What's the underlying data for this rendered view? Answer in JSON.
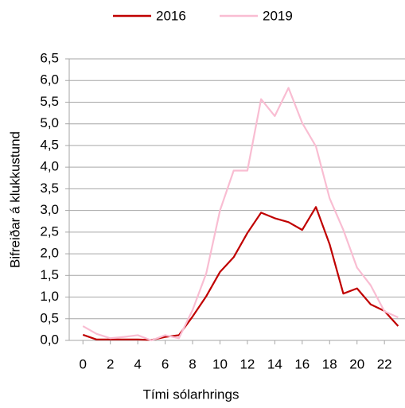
{
  "chart_data": {
    "type": "line",
    "x_label": "Tími sólarhrings",
    "y_label": "Bifreiðar á klukkustund",
    "x": [
      0,
      1,
      2,
      3,
      4,
      5,
      6,
      7,
      8,
      9,
      10,
      11,
      12,
      13,
      14,
      15,
      16,
      17,
      18,
      19,
      20,
      21,
      22,
      23
    ],
    "series": [
      {
        "name": "2016",
        "color": "#c00000",
        "values": [
          0.13,
          0.02,
          0.02,
          0.02,
          0.02,
          0.01,
          0.08,
          0.12,
          0.55,
          1.02,
          1.58,
          1.92,
          2.48,
          2.95,
          2.82,
          2.73,
          2.55,
          3.08,
          2.22,
          1.08,
          1.2,
          0.83,
          0.68,
          0.33
        ]
      },
      {
        "name": "2019",
        "color": "#f9bdd2",
        "values": [
          0.33,
          0.15,
          0.05,
          0.08,
          0.12,
          0.0,
          0.12,
          0.05,
          0.7,
          1.55,
          3.0,
          3.92,
          3.92,
          5.57,
          5.18,
          5.83,
          5.02,
          4.48,
          3.28,
          2.55,
          1.68,
          1.27,
          0.67,
          0.53
        ]
      }
    ],
    "xlim": [
      -1,
      23.5
    ],
    "xticks": [
      0,
      2,
      4,
      6,
      8,
      10,
      12,
      14,
      16,
      18,
      20,
      22
    ],
    "ylim": [
      0,
      6.5
    ],
    "yticks": [
      {
        "value": 0,
        "label": "0,0"
      },
      {
        "value": 0.5,
        "label": "0,5"
      },
      {
        "value": 1,
        "label": "1,0"
      },
      {
        "value": 1.5,
        "label": "1,5"
      },
      {
        "value": 2,
        "label": "2,0"
      },
      {
        "value": 2.5,
        "label": "2,5"
      },
      {
        "value": 3,
        "label": "3,0"
      },
      {
        "value": 3.5,
        "label": "3,5"
      },
      {
        "value": 4,
        "label": "4,0"
      },
      {
        "value": 4.5,
        "label": "4,5"
      },
      {
        "value": 5,
        "label": "5,0"
      },
      {
        "value": 5.5,
        "label": "5,5"
      },
      {
        "value": 6,
        "label": "6,0"
      },
      {
        "value": 6.5,
        "label": "6,5"
      }
    ],
    "grid": true,
    "legend": "top"
  }
}
